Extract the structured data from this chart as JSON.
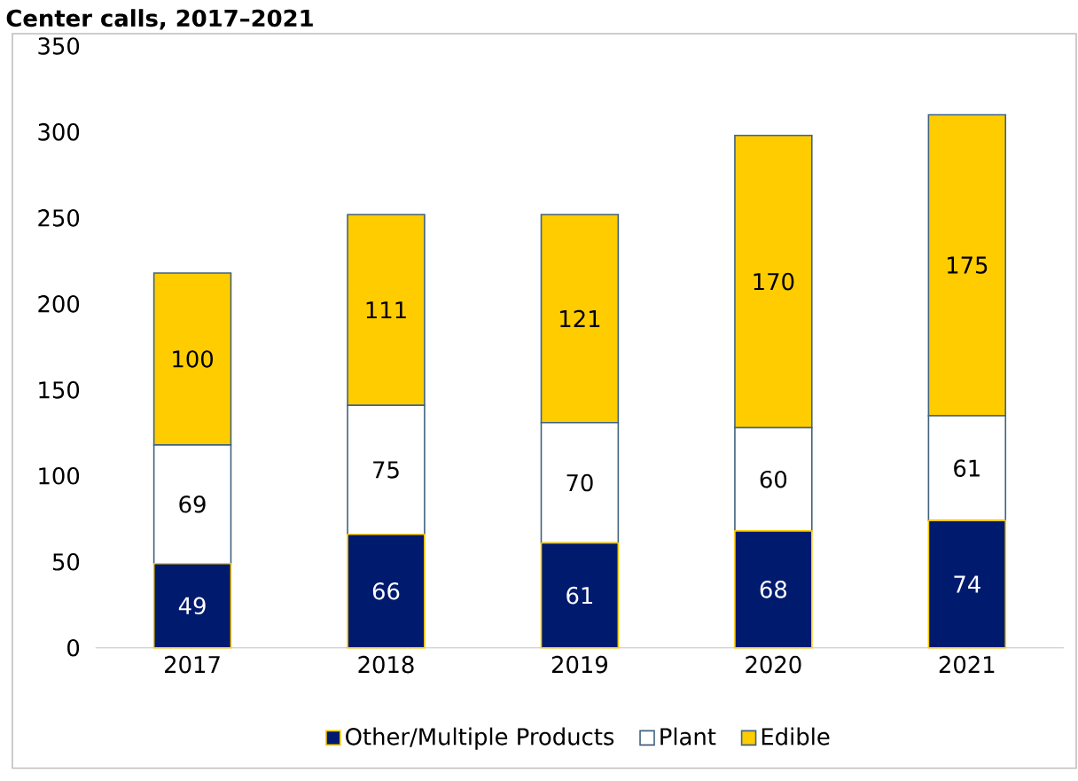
{
  "chart_data": {
    "type": "bar",
    "stacked": true,
    "title": "Center calls, 2017–2021",
    "categories": [
      "2017",
      "2018",
      "2019",
      "2020",
      "2021"
    ],
    "series": [
      {
        "name": "Other/Multiple Products",
        "color": "#001a6e",
        "values": [
          49,
          66,
          61,
          68,
          74
        ]
      },
      {
        "name": "Plant",
        "color": "#ffffff",
        "values": [
          69,
          75,
          70,
          60,
          61
        ]
      },
      {
        "name": "Edible",
        "color": "#ffcc00",
        "values": [
          100,
          111,
          121,
          170,
          175
        ]
      }
    ],
    "ylim": [
      0,
      350
    ],
    "yticks": [
      0,
      50,
      100,
      150,
      200,
      250,
      300,
      350
    ],
    "data_labels": true,
    "legend": "bottom",
    "grid": false
  }
}
